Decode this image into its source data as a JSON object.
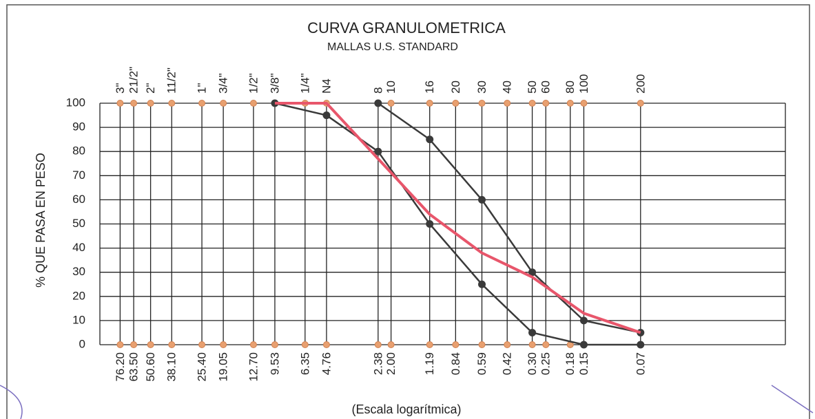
{
  "chart_data": {
    "type": "line",
    "title": "CURVA GRANULOMETRICA",
    "subtitle": "MALLAS U.S. STANDARD",
    "ylabel": "% QUE PASA EN PESO",
    "xlabel": "(Escala logarítmica)",
    "xscale": "log",
    "xlim": [
      100,
      0.01
    ],
    "xticks": [
      {
        "value": 76.2,
        "label": "76.20"
      },
      {
        "value": 63.5,
        "label": "63.50"
      },
      {
        "value": 50.6,
        "label": "50.60"
      },
      {
        "value": 38.1,
        "label": "38.10"
      },
      {
        "value": 25.4,
        "label": "25.40"
      },
      19.05,
      {
        "value": 12.7,
        "label": "12.70"
      },
      9.53,
      6.35,
      4.76,
      2.38,
      {
        "value": 2,
        "label": "2.00"
      },
      1.19,
      0.84,
      0.59,
      0.42,
      {
        "value": 0.3,
        "label": "0.30"
      },
      0.25,
      0.18,
      0.15,
      0.07
    ],
    "sieve_labels": [
      "3\"",
      "21/2\"",
      "2\"",
      "11/2\"",
      "1\"",
      "3/4\"",
      "1/2\"",
      "3/8\"",
      "1/4\"",
      "N4",
      "8",
      "10",
      "16",
      "20",
      "30",
      "40",
      "50",
      "60",
      "80",
      "100",
      "200"
    ],
    "ylim": [
      0,
      100
    ],
    "yticks": [
      0,
      10,
      20,
      30,
      40,
      50,
      60,
      70,
      80,
      90,
      100
    ],
    "grid": true,
    "series": [
      {
        "color": "#3a3a3a",
        "marker": true,
        "width": 2.5,
        "x": [
          2.38,
          1.19,
          0.59,
          0.3,
          0.15,
          0.07
        ],
        "values": [
          100,
          85,
          60,
          30,
          10,
          5
        ]
      },
      {
        "color": "#3a3a3a",
        "marker": true,
        "width": 2.5,
        "x": [
          9.53,
          4.76,
          2.38,
          1.19,
          0.59,
          0.3,
          0.15,
          0.07
        ],
        "values": [
          100,
          95,
          80,
          50,
          25,
          5,
          0,
          0
        ]
      },
      {
        "color": "#e8566b",
        "marker": false,
        "width": 4,
        "x": [
          9.53,
          4.76,
          2.38,
          1.19,
          0.59,
          0.3,
          0.15,
          0.07
        ],
        "values": [
          100,
          100,
          77,
          54,
          38,
          28,
          13,
          5
        ]
      }
    ]
  }
}
